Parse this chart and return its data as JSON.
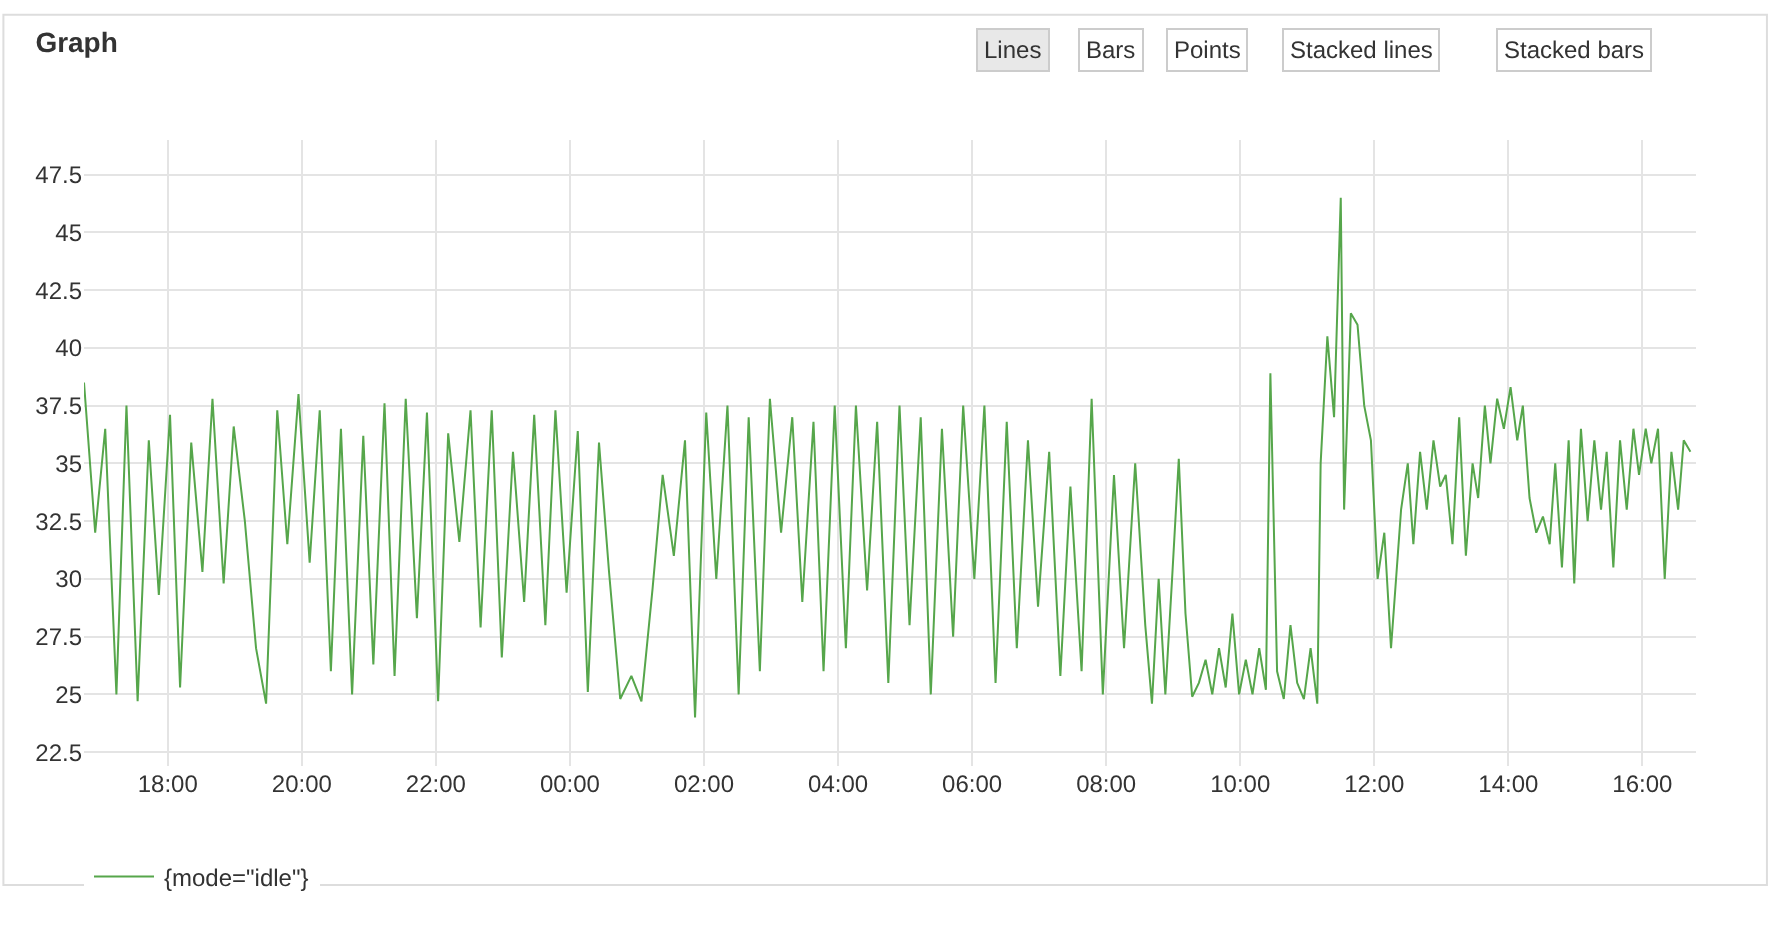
{
  "chart_data": {
    "type": "line",
    "title": "Graph",
    "annotations": [
      "Lines",
      "Bars",
      "Points",
      "Stacked lines",
      "Stacked bars"
    ],
    "xlim": [
      "--01-01T16:45",
      "--01-02T16:48"
    ],
    "xticks": [
      {
        "value": "--01-01T18:00",
        "label": "18:00"
      },
      {
        "value": "--01-01T20:00",
        "label": "20:00"
      },
      {
        "value": "--01-01T22:00",
        "label": "22:00"
      },
      {
        "value": "--01-02T00:00",
        "label": "00:00"
      },
      {
        "value": "--01-02T02:00",
        "label": "02:00"
      },
      {
        "value": "--01-02T04:00",
        "label": "04:00"
      },
      {
        "value": "--01-02T06:00",
        "label": "06:00"
      },
      {
        "value": "--01-02T08:00",
        "label": "08:00"
      },
      {
        "value": "--01-02T10:00",
        "label": "10:00"
      },
      {
        "value": "--01-02T12:00",
        "label": "12:00"
      },
      {
        "value": "--01-02T14:00",
        "label": "14:00"
      },
      {
        "value": "--01-02T16:00",
        "label": "16:00"
      }
    ],
    "ylim": [
      21.9,
      49
    ],
    "yticks": [
      22.5,
      25,
      27.5,
      30,
      32.5,
      35,
      37.5,
      40,
      42.5,
      45,
      47.5
    ],
    "grid": true,
    "legend": "bottom left",
    "marker": "none",
    "line_style": "solid",
    "series": [
      {
        "name": "{mode=\"idle\"}",
        "color": "#56a64b",
        "x": [
          "--01-01T16:45",
          "--01-01T16:55",
          "--01-01T17:04",
          "--01-01T17:14",
          "--01-01T17:23",
          "--01-01T17:33",
          "--01-01T17:43",
          "--01-01T17:52",
          "--01-01T18:02",
          "--01-01T18:11",
          "--01-01T18:21",
          "--01-01T18:31",
          "--01-01T18:40",
          "--01-01T18:50",
          "--01-01T18:59",
          "--01-01T19:09",
          "--01-01T19:19",
          "--01-01T19:28",
          "--01-01T19:38",
          "--01-01T19:47",
          "--01-01T19:57",
          "--01-01T20:07",
          "--01-01T20:16",
          "--01-01T20:26",
          "--01-01T20:35",
          "--01-01T20:45",
          "--01-01T20:55",
          "--01-01T21:04",
          "--01-01T21:14",
          "--01-01T21:23",
          "--01-01T21:33",
          "--01-01T21:43",
          "--01-01T21:52",
          "--01-01T22:02",
          "--01-01T22:11",
          "--01-01T22:21",
          "--01-01T22:31",
          "--01-01T22:40",
          "--01-01T22:50",
          "--01-01T22:59",
          "--01-01T23:09",
          "--01-01T23:19",
          "--01-01T23:28",
          "--01-01T23:38",
          "--01-01T23:47",
          "--01-01T23:57",
          "--01-02T00:07",
          "--01-02T00:16",
          "--01-02T00:26",
          "--01-02T00:35",
          "--01-02T00:45",
          "--01-02T00:55",
          "--01-02T01:04",
          "--01-02T01:14",
          "--01-02T01:23",
          "--01-02T01:33",
          "--01-02T01:43",
          "--01-02T01:52",
          "--01-02T02:02",
          "--01-02T02:11",
          "--01-02T02:21",
          "--01-02T02:31",
          "--01-02T02:40",
          "--01-02T02:50",
          "--01-02T02:59",
          "--01-02T03:09",
          "--01-02T03:19",
          "--01-02T03:28",
          "--01-02T03:38",
          "--01-02T03:47",
          "--01-02T03:57",
          "--01-02T04:07",
          "--01-02T04:16",
          "--01-02T04:26",
          "--01-02T04:35",
          "--01-02T04:45",
          "--01-02T04:55",
          "--01-02T05:04",
          "--01-02T05:14",
          "--01-02T05:23",
          "--01-02T05:33",
          "--01-02T05:43",
          "--01-02T05:52",
          "--01-02T06:02",
          "--01-02T06:11",
          "--01-02T06:21",
          "--01-02T06:31",
          "--01-02T06:40",
          "--01-02T06:50",
          "--01-02T06:59",
          "--01-02T07:09",
          "--01-02T07:19",
          "--01-02T07:28",
          "--01-02T07:38",
          "--01-02T07:47",
          "--01-02T07:57",
          "--01-02T08:07",
          "--01-02T08:16",
          "--01-02T08:26",
          "--01-02T08:35",
          "--01-02T08:41",
          "--01-02T08:47",
          "--01-02T08:53",
          "--01-02T08:59",
          "--01-02T09:05",
          "--01-02T09:11",
          "--01-02T09:17",
          "--01-02T09:23",
          "--01-02T09:29",
          "--01-02T09:35",
          "--01-02T09:41",
          "--01-02T09:47",
          "--01-02T09:53",
          "--01-02T09:59",
          "--01-02T10:05",
          "--01-02T10:11",
          "--01-02T10:17",
          "--01-02T10:23",
          "--01-02T10:27",
          "--01-02T10:33",
          "--01-02T10:39",
          "--01-02T10:45",
          "--01-02T10:51",
          "--01-02T10:57",
          "--01-02T11:03",
          "--01-02T11:09",
          "--01-02T11:12",
          "--01-02T11:18",
          "--01-02T11:24",
          "--01-02T11:30",
          "--01-02T11:33",
          "--01-02T11:39",
          "--01-02T11:45",
          "--01-02T11:51",
          "--01-02T11:57",
          "--01-02T12:03",
          "--01-02T12:09",
          "--01-02T12:15",
          "--01-02T12:24",
          "--01-02T12:30",
          "--01-02T12:35",
          "--01-02T12:41",
          "--01-02T12:47",
          "--01-02T12:53",
          "--01-02T12:59",
          "--01-02T13:04",
          "--01-02T13:10",
          "--01-02T13:16",
          "--01-02T13:22",
          "--01-02T13:28",
          "--01-02T13:33",
          "--01-02T13:39",
          "--01-02T13:44",
          "--01-02T13:50",
          "--01-02T13:56",
          "--01-02T14:02",
          "--01-02T14:08",
          "--01-02T14:13",
          "--01-02T14:19",
          "--01-02T14:25",
          "--01-02T14:31",
          "--01-02T14:37",
          "--01-02T14:42",
          "--01-02T14:48",
          "--01-02T14:54",
          "--01-02T14:59",
          "--01-02T15:05",
          "--01-02T15:11",
          "--01-02T15:17",
          "--01-02T15:23",
          "--01-02T15:28",
          "--01-02T15:34",
          "--01-02T15:40",
          "--01-02T15:46",
          "--01-02T15:52",
          "--01-02T15:57",
          "--01-02T16:03",
          "--01-02T16:08",
          "--01-02T16:14",
          "--01-02T16:20",
          "--01-02T16:26",
          "--01-02T16:32",
          "--01-02T16:37",
          "--01-02T16:43"
        ],
        "values": [
          38.5,
          32,
          36.5,
          25,
          37.5,
          24.7,
          36,
          29.3,
          37.1,
          25.3,
          35.9,
          30.3,
          37.8,
          29.8,
          36.6,
          32.5,
          27,
          24.6,
          37.3,
          31.5,
          38,
          30.7,
          37.3,
          26,
          36.5,
          25,
          36.2,
          26.3,
          37.6,
          25.8,
          37.8,
          28.3,
          37.2,
          24.7,
          36.3,
          31.6,
          37.3,
          27.9,
          37.3,
          26.6,
          35.5,
          29,
          37.1,
          28,
          37.3,
          29.4,
          36.4,
          25.1,
          35.9,
          30.3,
          24.8,
          25.8,
          24.7,
          29.6,
          34.5,
          31,
          36,
          24,
          37.2,
          30,
          37.5,
          25,
          37,
          26,
          37.8,
          32,
          37,
          29,
          36.8,
          26,
          37.5,
          27,
          37.5,
          29.5,
          36.8,
          25.5,
          37.5,
          28,
          37,
          25,
          36.5,
          27.5,
          37.5,
          30,
          37.5,
          25.5,
          36.8,
          27,
          36,
          28.8,
          35.5,
          25.8,
          34,
          26,
          37.8,
          25,
          34.5,
          27,
          35,
          28,
          24.6,
          30,
          25,
          30,
          35.2,
          28.5,
          24.9,
          25.5,
          26.5,
          25,
          27,
          25.3,
          28.5,
          25,
          26.5,
          25,
          27,
          25.2,
          38.9,
          26,
          24.8,
          28,
          25.5,
          24.8,
          27,
          24.6,
          35,
          40.5,
          37,
          46.5,
          33,
          41.5,
          41,
          37.5,
          36,
          30,
          32,
          27,
          33,
          35,
          31.5,
          35.5,
          33,
          36,
          34,
          34.5,
          31.5,
          37,
          31,
          35,
          33.5,
          37.5,
          35,
          37.8,
          36.5,
          38.3,
          36,
          37.5,
          33.5,
          32,
          32.7,
          31.5,
          35,
          30.5,
          36,
          29.8,
          36.5,
          32.5,
          36,
          33,
          35.5,
          30.5,
          36,
          33,
          36.5,
          34.5,
          36.5,
          35,
          36.5,
          30,
          35.5,
          33,
          36,
          35.5
        ]
      }
    ]
  }
}
